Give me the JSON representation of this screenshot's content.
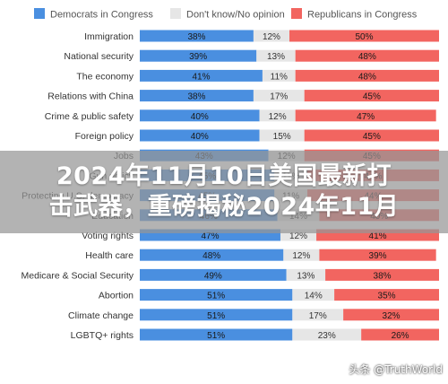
{
  "chart_data": {
    "type": "bar",
    "stacked": true,
    "orientation": "horizontal",
    "categories": [
      "Immigration",
      "National security",
      "The economy",
      "Relations with China",
      "Crime & public safety",
      "Foreign policy",
      "Jobs",
      "Gun policy",
      "Protecting U.S. democracy",
      "Education",
      "Voting rights",
      "Health care",
      "Medicare & Social Security",
      "Abortion",
      "Climate change",
      "LGBTQ+ rights"
    ],
    "series": [
      {
        "name": "Democrats in Congress",
        "color": "#4a8fe0",
        "values": [
          38,
          39,
          41,
          38,
          40,
          40,
          43,
          45,
          45,
          46,
          47,
          48,
          49,
          51,
          51,
          51
        ]
      },
      {
        "name": "Don't know/No opinion",
        "color": "#e6e6e6",
        "values": [
          12,
          13,
          11,
          17,
          12,
          15,
          12,
          11,
          11,
          14,
          12,
          12,
          13,
          14,
          17,
          23
        ]
      },
      {
        "name": "Republicans in Congress",
        "color": "#f26560",
        "values": [
          50,
          48,
          48,
          45,
          47,
          45,
          45,
          44,
          44,
          40,
          41,
          39,
          38,
          35,
          32,
          26
        ]
      }
    ],
    "value_suffix": "%",
    "xlim": [
      0,
      100
    ],
    "legend_position": "top",
    "grid": false
  },
  "banner": {
    "line1": "2024年11月10日美国最新打",
    "line2": "击武器，重磅揭秘2024年11月"
  },
  "watermark": "头条 @TruthWorld"
}
